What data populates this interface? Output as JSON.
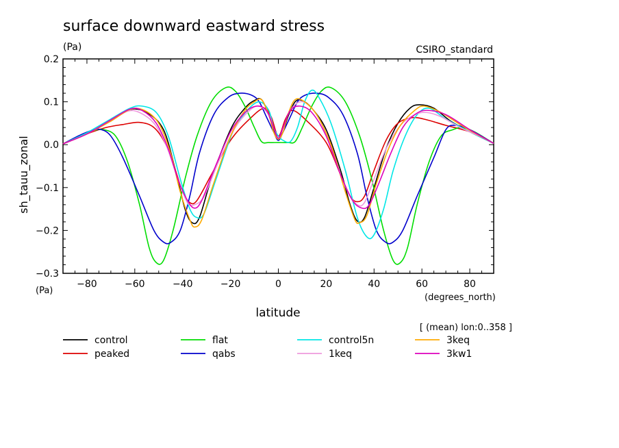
{
  "chart_data": {
    "type": "line",
    "title": "surface downward eastward stress",
    "units": "(Pa)",
    "model": "CSIRO_standard",
    "xlabel": "latitude",
    "x_units": "(degrees_north)",
    "ylabel": "sh_tauu_zonal",
    "y_units": "(Pa)",
    "subset_note": "[ (mean) lon:0..358 ]",
    "xlim": [
      -90,
      90
    ],
    "ylim": [
      -0.3,
      0.2
    ],
    "x_ticks": [
      -80,
      -60,
      -40,
      -20,
      0,
      20,
      40,
      60,
      80
    ],
    "y_ticks": [
      0.2,
      0.1,
      0.0,
      -0.1,
      -0.2,
      -0.3
    ],
    "x_tick_labels": [
      "−80",
      "−60",
      "−40",
      "−20",
      "0",
      "20",
      "40",
      "60",
      "80"
    ],
    "y_tick_labels": [
      "0.2",
      "0.1",
      "0.0",
      "−0.1",
      "−0.2",
      "−0.3"
    ],
    "legend_position": "bottom",
    "series": [
      {
        "name": "control",
        "color": "#000000",
        "points": [
          [
            -90,
            0.002
          ],
          [
            -80,
            0.025
          ],
          [
            -70,
            0.055
          ],
          [
            -62,
            0.082
          ],
          [
            -55,
            0.075
          ],
          [
            -48,
            0.035
          ],
          [
            -43,
            -0.06
          ],
          [
            -39,
            -0.15
          ],
          [
            -36,
            -0.182
          ],
          [
            -33,
            -0.17
          ],
          [
            -28,
            -0.08
          ],
          [
            -20,
            0.035
          ],
          [
            -14,
            0.085
          ],
          [
            -10,
            0.103
          ],
          [
            -7,
            0.105
          ],
          [
            -4,
            0.07
          ],
          [
            -2,
            0.035
          ],
          [
            0,
            0.015
          ],
          [
            2,
            0.03
          ],
          [
            4,
            0.065
          ],
          [
            7,
            0.1
          ],
          [
            10,
            0.103
          ],
          [
            14,
            0.085
          ],
          [
            20,
            0.035
          ],
          [
            26,
            -0.06
          ],
          [
            30,
            -0.14
          ],
          [
            33,
            -0.178
          ],
          [
            36,
            -0.17
          ],
          [
            40,
            -0.1
          ],
          [
            45,
            -0.01
          ],
          [
            50,
            0.05
          ],
          [
            55,
            0.085
          ],
          [
            59,
            0.093
          ],
          [
            65,
            0.085
          ],
          [
            72,
            0.055
          ],
          [
            80,
            0.03
          ],
          [
            90,
            0.003
          ]
        ]
      },
      {
        "name": "peaked",
        "color": "#dd0000",
        "points": [
          [
            -90,
            0.002
          ],
          [
            -80,
            0.025
          ],
          [
            -72,
            0.04
          ],
          [
            -65,
            0.047
          ],
          [
            -58,
            0.052
          ],
          [
            -52,
            0.04
          ],
          [
            -47,
            0.0
          ],
          [
            -43,
            -0.06
          ],
          [
            -40,
            -0.11
          ],
          [
            -37,
            -0.135
          ],
          [
            -34,
            -0.13
          ],
          [
            -28,
            -0.07
          ],
          [
            -20,
            0.01
          ],
          [
            -12,
            0.06
          ],
          [
            -6,
            0.085
          ],
          [
            -3,
            0.065
          ],
          [
            0,
            0.02
          ],
          [
            3,
            0.06
          ],
          [
            6,
            0.08
          ],
          [
            12,
            0.055
          ],
          [
            20,
            0.005
          ],
          [
            26,
            -0.07
          ],
          [
            30,
            -0.12
          ],
          [
            33,
            -0.133
          ],
          [
            36,
            -0.12
          ],
          [
            40,
            -0.06
          ],
          [
            45,
            0.01
          ],
          [
            50,
            0.05
          ],
          [
            56,
            0.063
          ],
          [
            62,
            0.058
          ],
          [
            70,
            0.045
          ],
          [
            80,
            0.03
          ],
          [
            90,
            0.003
          ]
        ]
      },
      {
        "name": "flat",
        "color": "#00dd00",
        "points": [
          [
            -90,
            0.002
          ],
          [
            -83,
            0.02
          ],
          [
            -77,
            0.033
          ],
          [
            -73,
            0.035
          ],
          [
            -68,
            0.02
          ],
          [
            -63,
            -0.04
          ],
          [
            -58,
            -0.14
          ],
          [
            -54,
            -0.24
          ],
          [
            -51,
            -0.275
          ],
          [
            -48,
            -0.27
          ],
          [
            -44,
            -0.2
          ],
          [
            -39,
            -0.08
          ],
          [
            -34,
            0.02
          ],
          [
            -28,
            0.1
          ],
          [
            -22,
            0.133
          ],
          [
            -18,
            0.125
          ],
          [
            -14,
            0.09
          ],
          [
            -10,
            0.04
          ],
          [
            -7,
            0.007
          ],
          [
            -4,
            0.005
          ],
          [
            0,
            0.005
          ],
          [
            4,
            0.005
          ],
          [
            7,
            0.007
          ],
          [
            10,
            0.04
          ],
          [
            14,
            0.09
          ],
          [
            18,
            0.125
          ],
          [
            22,
            0.133
          ],
          [
            28,
            0.1
          ],
          [
            34,
            0.02
          ],
          [
            39,
            -0.08
          ],
          [
            44,
            -0.2
          ],
          [
            48,
            -0.27
          ],
          [
            51,
            -0.275
          ],
          [
            54,
            -0.24
          ],
          [
            58,
            -0.14
          ],
          [
            63,
            -0.04
          ],
          [
            68,
            0.02
          ],
          [
            73,
            0.035
          ],
          [
            77,
            0.04
          ],
          [
            82,
            0.03
          ],
          [
            90,
            0.003
          ]
        ]
      },
      {
        "name": "qabs",
        "color": "#0000cc",
        "points": [
          [
            -90,
            0.002
          ],
          [
            -83,
            0.022
          ],
          [
            -78,
            0.033
          ],
          [
            -74,
            0.035
          ],
          [
            -70,
            0.02
          ],
          [
            -65,
            -0.03
          ],
          [
            -58,
            -0.12
          ],
          [
            -52,
            -0.2
          ],
          [
            -48,
            -0.227
          ],
          [
            -45,
            -0.228
          ],
          [
            -41,
            -0.2
          ],
          [
            -37,
            -0.12
          ],
          [
            -33,
            -0.02
          ],
          [
            -27,
            0.07
          ],
          [
            -21,
            0.11
          ],
          [
            -16,
            0.12
          ],
          [
            -11,
            0.115
          ],
          [
            -8,
            0.1
          ],
          [
            -5,
            0.065
          ],
          [
            -2,
            0.03
          ],
          [
            0,
            0.01
          ],
          [
            2,
            0.03
          ],
          [
            5,
            0.065
          ],
          [
            8,
            0.1
          ],
          [
            11,
            0.115
          ],
          [
            16,
            0.12
          ],
          [
            21,
            0.11
          ],
          [
            27,
            0.07
          ],
          [
            33,
            -0.02
          ],
          [
            37,
            -0.12
          ],
          [
            41,
            -0.2
          ],
          [
            45,
            -0.228
          ],
          [
            48,
            -0.227
          ],
          [
            52,
            -0.2
          ],
          [
            58,
            -0.12
          ],
          [
            65,
            -0.03
          ],
          [
            70,
            0.035
          ],
          [
            74,
            0.045
          ],
          [
            80,
            0.035
          ],
          [
            90,
            0.003
          ]
        ]
      },
      {
        "name": "control5n",
        "color": "#00e6e6",
        "points": [
          [
            -90,
            0.002
          ],
          [
            -80,
            0.028
          ],
          [
            -70,
            0.06
          ],
          [
            -62,
            0.085
          ],
          [
            -57,
            0.09
          ],
          [
            -51,
            0.075
          ],
          [
            -46,
            0.02
          ],
          [
            -41,
            -0.08
          ],
          [
            -37,
            -0.15
          ],
          [
            -34,
            -0.17
          ],
          [
            -31,
            -0.16
          ],
          [
            -26,
            -0.08
          ],
          [
            -19,
            0.03
          ],
          [
            -13,
            0.08
          ],
          [
            -8,
            0.1
          ],
          [
            -4,
            0.08
          ],
          [
            -2,
            0.04
          ],
          [
            0,
            0.02
          ],
          [
            2,
            0.01
          ],
          [
            5,
            0.007
          ],
          [
            8,
            0.04
          ],
          [
            11,
            0.1
          ],
          [
            14,
            0.127
          ],
          [
            17,
            0.11
          ],
          [
            22,
            0.05
          ],
          [
            28,
            -0.06
          ],
          [
            33,
            -0.17
          ],
          [
            37,
            -0.215
          ],
          [
            40,
            -0.21
          ],
          [
            44,
            -0.15
          ],
          [
            48,
            -0.06
          ],
          [
            53,
            0.02
          ],
          [
            58,
            0.07
          ],
          [
            63,
            0.085
          ],
          [
            70,
            0.06
          ],
          [
            80,
            0.03
          ],
          [
            90,
            0.003
          ]
        ]
      },
      {
        "name": "1keq",
        "color": "#ee99dd",
        "points": [
          [
            -90,
            0.002
          ],
          [
            -80,
            0.025
          ],
          [
            -70,
            0.055
          ],
          [
            -63,
            0.078
          ],
          [
            -58,
            0.075
          ],
          [
            -52,
            0.05
          ],
          [
            -47,
            0.0
          ],
          [
            -42,
            -0.08
          ],
          [
            -38,
            -0.135
          ],
          [
            -35,
            -0.14
          ],
          [
            -31,
            -0.12
          ],
          [
            -25,
            -0.04
          ],
          [
            -18,
            0.04
          ],
          [
            -12,
            0.08
          ],
          [
            -8,
            0.09
          ],
          [
            -4,
            0.07
          ],
          [
            -2,
            0.04
          ],
          [
            0,
            0.015
          ],
          [
            2,
            0.04
          ],
          [
            5,
            0.08
          ],
          [
            9,
            0.1
          ],
          [
            13,
            0.09
          ],
          [
            18,
            0.05
          ],
          [
            24,
            -0.04
          ],
          [
            29,
            -0.11
          ],
          [
            33,
            -0.14
          ],
          [
            36,
            -0.135
          ],
          [
            40,
            -0.08
          ],
          [
            45,
            -0.01
          ],
          [
            51,
            0.045
          ],
          [
            57,
            0.07
          ],
          [
            62,
            0.075
          ],
          [
            68,
            0.065
          ],
          [
            76,
            0.04
          ],
          [
            84,
            0.02
          ],
          [
            90,
            0.003
          ]
        ]
      },
      {
        "name": "3keq",
        "color": "#ffaa00",
        "points": [
          [
            -90,
            0.002
          ],
          [
            -80,
            0.025
          ],
          [
            -70,
            0.055
          ],
          [
            -62,
            0.082
          ],
          [
            -56,
            0.08
          ],
          [
            -50,
            0.05
          ],
          [
            -45,
            -0.02
          ],
          [
            -41,
            -0.11
          ],
          [
            -37,
            -0.175
          ],
          [
            -35,
            -0.192
          ],
          [
            -32,
            -0.175
          ],
          [
            -27,
            -0.09
          ],
          [
            -20,
            0.02
          ],
          [
            -14,
            0.08
          ],
          [
            -10,
            0.1
          ],
          [
            -7,
            0.105
          ],
          [
            -4,
            0.07
          ],
          [
            -2,
            0.03
          ],
          [
            0,
            0.013
          ],
          [
            2,
            0.03
          ],
          [
            4,
            0.07
          ],
          [
            7,
            0.105
          ],
          [
            11,
            0.1
          ],
          [
            16,
            0.07
          ],
          [
            22,
            0.0
          ],
          [
            28,
            -0.11
          ],
          [
            32,
            -0.175
          ],
          [
            34,
            -0.182
          ],
          [
            37,
            -0.165
          ],
          [
            41,
            -0.09
          ],
          [
            46,
            -0.01
          ],
          [
            51,
            0.045
          ],
          [
            57,
            0.08
          ],
          [
            61,
            0.09
          ],
          [
            68,
            0.075
          ],
          [
            78,
            0.04
          ],
          [
            90,
            0.003
          ]
        ]
      },
      {
        "name": "3kw1",
        "color": "#dd00bb",
        "points": [
          [
            -90,
            0.002
          ],
          [
            -80,
            0.025
          ],
          [
            -70,
            0.058
          ],
          [
            -62,
            0.083
          ],
          [
            -57,
            0.08
          ],
          [
            -51,
            0.05
          ],
          [
            -46,
            -0.01
          ],
          [
            -42,
            -0.08
          ],
          [
            -38,
            -0.13
          ],
          [
            -35,
            -0.148
          ],
          [
            -32,
            -0.13
          ],
          [
            -27,
            -0.06
          ],
          [
            -20,
            0.03
          ],
          [
            -14,
            0.075
          ],
          [
            -9,
            0.09
          ],
          [
            -5,
            0.08
          ],
          [
            -2,
            0.04
          ],
          [
            0,
            0.015
          ],
          [
            2,
            0.04
          ],
          [
            5,
            0.08
          ],
          [
            9,
            0.09
          ],
          [
            14,
            0.075
          ],
          [
            20,
            0.02
          ],
          [
            26,
            -0.07
          ],
          [
            31,
            -0.13
          ],
          [
            35,
            -0.148
          ],
          [
            38,
            -0.14
          ],
          [
            42,
            -0.09
          ],
          [
            47,
            -0.02
          ],
          [
            52,
            0.04
          ],
          [
            57,
            0.07
          ],
          [
            62,
            0.08
          ],
          [
            70,
            0.07
          ],
          [
            80,
            0.035
          ],
          [
            90,
            0.003
          ]
        ]
      }
    ]
  }
}
